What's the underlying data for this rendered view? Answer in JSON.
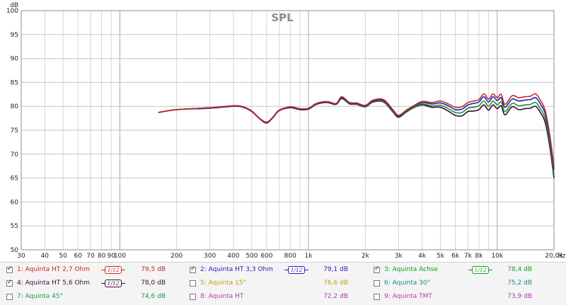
{
  "chart_data": {
    "type": "line",
    "title": "SPL",
    "ylabel": "dB",
    "xlabel": "Hz",
    "x_scale": "log",
    "xlim": [
      30,
      20000
    ],
    "ylim": [
      50,
      100
    ],
    "grid": true,
    "y_ticks": [
      50,
      55,
      60,
      65,
      70,
      75,
      80,
      85,
      90,
      95,
      100
    ],
    "x_tick_labels": [
      {
        "x": 30,
        "label": "30"
      },
      {
        "x": 40,
        "label": "40"
      },
      {
        "x": 50,
        "label": "50"
      },
      {
        "x": 60,
        "label": "60"
      },
      {
        "x": 70,
        "label": "70"
      },
      {
        "x": 80,
        "label": "80"
      },
      {
        "x": 90,
        "label": "90"
      },
      {
        "x": 100,
        "label": "100"
      },
      {
        "x": 200,
        "label": "200"
      },
      {
        "x": 300,
        "label": "300"
      },
      {
        "x": 400,
        "label": "400"
      },
      {
        "x": 500,
        "label": "500"
      },
      {
        "x": 600,
        "label": "600"
      },
      {
        "x": 800,
        "label": "800"
      },
      {
        "x": 1000,
        "label": "1k"
      },
      {
        "x": 2000,
        "label": "2k"
      },
      {
        "x": 3000,
        "label": "3k"
      },
      {
        "x": 4000,
        "label": "4k"
      },
      {
        "x": 5000,
        "label": "5k"
      },
      {
        "x": 6000,
        "label": "6k"
      },
      {
        "x": 7000,
        "label": "7k"
      },
      {
        "x": 8000,
        "label": "8k"
      },
      {
        "x": 10000,
        "label": "10k"
      },
      {
        "x": 20000,
        "label": "20,0k"
      }
    ],
    "series": [
      {
        "name": "1: Aquinta HT 2,7 Ohm",
        "color": "#c62828",
        "x": [
          160,
          200,
          300,
          400,
          450,
          500,
          550,
          600,
          650,
          700,
          800,
          900,
          1000,
          1100,
          1250,
          1400,
          1500,
          1650,
          1800,
          2000,
          2200,
          2500,
          2800,
          3000,
          3300,
          3600,
          4000,
          4500,
          5000,
          5500,
          6000,
          6500,
          7000,
          7500,
          8000,
          8500,
          9000,
          9500,
          10000,
          10500,
          11000,
          12000,
          13000,
          14000,
          15000,
          16000,
          17000,
          18000,
          19000,
          20000
        ],
        "y": [
          78.7,
          79.3,
          79.7,
          80.1,
          79.9,
          79.0,
          77.5,
          76.7,
          77.8,
          79.2,
          79.9,
          79.5,
          79.6,
          80.6,
          81.0,
          80.6,
          82.0,
          80.8,
          80.7,
          80.2,
          81.3,
          81.4,
          79.3,
          78.1,
          79.2,
          80.1,
          81.0,
          80.8,
          81.1,
          80.5,
          79.8,
          79.9,
          80.8,
          81.1,
          81.4,
          82.6,
          81.5,
          82.6,
          81.8,
          82.5,
          80.4,
          82.2,
          81.8,
          82.0,
          82.1,
          82.6,
          81.2,
          79.0,
          74.0,
          67.5
        ]
      },
      {
        "name": "2: Aquinta HT 3,3 Ohm",
        "color": "#1f1fbf",
        "x": [
          160,
          200,
          300,
          400,
          450,
          500,
          550,
          600,
          650,
          700,
          800,
          900,
          1000,
          1100,
          1250,
          1400,
          1500,
          1650,
          1800,
          2000,
          2200,
          2500,
          2800,
          3000,
          3300,
          3600,
          4000,
          4500,
          5000,
          5500,
          6000,
          6500,
          7000,
          7500,
          8000,
          8500,
          9000,
          9500,
          10000,
          10500,
          11000,
          12000,
          13000,
          14000,
          15000,
          16000,
          17000,
          18000,
          19000,
          20000
        ],
        "y": [
          78.7,
          79.3,
          79.7,
          80.1,
          79.9,
          79.0,
          77.5,
          76.6,
          77.8,
          79.2,
          79.8,
          79.4,
          79.5,
          80.5,
          80.9,
          80.5,
          81.8,
          80.7,
          80.6,
          80.1,
          81.1,
          81.2,
          79.1,
          77.9,
          79.1,
          80.0,
          80.8,
          80.5,
          80.7,
          80.1,
          79.3,
          79.4,
          80.3,
          80.6,
          80.9,
          82.0,
          80.9,
          82.0,
          81.2,
          81.8,
          79.8,
          81.5,
          81.1,
          81.3,
          81.4,
          81.8,
          80.4,
          78.3,
          73.3,
          66.8
        ]
      },
      {
        "name": "3: Aquinta Achse",
        "color": "#1a9a1a",
        "x": [
          160,
          200,
          300,
          400,
          450,
          500,
          550,
          600,
          650,
          700,
          800,
          900,
          1000,
          1100,
          1250,
          1400,
          1500,
          1650,
          1800,
          2000,
          2200,
          2500,
          2800,
          3000,
          3300,
          3600,
          4000,
          4500,
          5000,
          5500,
          6000,
          6500,
          7000,
          7500,
          8000,
          8500,
          9000,
          9500,
          10000,
          10500,
          11000,
          12000,
          13000,
          14000,
          15000,
          16000,
          17000,
          18000,
          19000,
          20000
        ],
        "y": [
          78.7,
          79.3,
          79.7,
          80.1,
          79.9,
          79.0,
          77.5,
          76.6,
          77.8,
          79.2,
          79.8,
          79.4,
          79.5,
          80.5,
          80.9,
          80.5,
          81.7,
          80.6,
          80.5,
          80.0,
          81.0,
          81.0,
          78.9,
          77.8,
          78.9,
          79.8,
          80.5,
          80.1,
          80.2,
          79.5,
          78.7,
          78.7,
          79.6,
          79.8,
          80.1,
          81.1,
          80.0,
          81.1,
          80.3,
          80.9,
          78.9,
          80.6,
          80.1,
          80.3,
          80.4,
          80.8,
          79.4,
          77.3,
          72.3,
          65.8
        ]
      },
      {
        "name": "4: Aquinta HT 5,6 Ohm",
        "color": "#3a0a3a",
        "x": [
          160,
          200,
          300,
          400,
          450,
          500,
          550,
          600,
          650,
          700,
          800,
          900,
          1000,
          1100,
          1250,
          1400,
          1500,
          1650,
          1800,
          2000,
          2200,
          2500,
          2800,
          3000,
          3300,
          3600,
          4000,
          4500,
          5000,
          5500,
          6000,
          6500,
          7000,
          7500,
          8000,
          8500,
          9000,
          9500,
          10000,
          10500,
          11000,
          12000,
          13000,
          14000,
          15000,
          16000,
          17000,
          18000,
          19000,
          20000
        ],
        "y": [
          78.7,
          79.3,
          79.6,
          80.0,
          79.8,
          78.9,
          77.4,
          76.5,
          77.7,
          79.1,
          79.7,
          79.3,
          79.4,
          80.4,
          80.8,
          80.4,
          81.6,
          80.5,
          80.4,
          79.9,
          80.9,
          80.9,
          78.8,
          77.7,
          78.8,
          79.7,
          80.3,
          79.8,
          79.8,
          79.0,
          78.1,
          78.0,
          78.9,
          79.0,
          79.3,
          80.3,
          79.2,
          80.3,
          79.5,
          80.1,
          78.2,
          79.9,
          79.3,
          79.5,
          79.6,
          80.0,
          78.6,
          76.5,
          71.5,
          65.0
        ]
      }
    ]
  },
  "legend": {
    "items": [
      {
        "label": "1: Aquinta HT 2,7 Ohm",
        "checked": true,
        "value": "79,5 dB",
        "color": "#c62828",
        "smoothing": "1/12"
      },
      {
        "label": "2: Aquinta HT 3,3 Ohm",
        "checked": true,
        "value": "79,1 dB",
        "color": "#1f1fbf",
        "smoothing": "1/12"
      },
      {
        "label": "3: Aquinta Achse",
        "checked": true,
        "value": "78,4 dB",
        "color": "#1a9a1a",
        "smoothing": "1/12"
      },
      {
        "label": "4: Aquinta HT 5,6 Ohm",
        "checked": true,
        "value": "78,0 dB",
        "color": "#3a0a3a",
        "smoothing": "1/12"
      },
      {
        "label": "5: Aquinta 15°",
        "checked": false,
        "value": "76,6 dB",
        "color": "#c8a000",
        "smoothing": ""
      },
      {
        "label": "6: Aquinta 30°",
        "checked": false,
        "value": "75,2 dB",
        "color": "#1a8a8a",
        "smoothing": ""
      },
      {
        "label": "7: Aquinta 45°",
        "checked": false,
        "value": "74,6 dB",
        "color": "#1a9a4a",
        "smoothing": ""
      },
      {
        "label": "8: Aquinta HT",
        "checked": false,
        "value": "72,2 dB",
        "color": "#b03ab0",
        "smoothing": ""
      },
      {
        "label": "9: Aquinta TMT",
        "checked": false,
        "value": "73,9 dB",
        "color": "#b03ab0",
        "smoothing": ""
      }
    ]
  }
}
